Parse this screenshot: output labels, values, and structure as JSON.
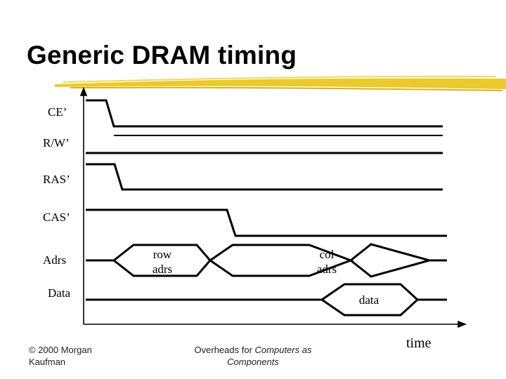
{
  "title": "Generic DRAM timing",
  "signals": {
    "ce": "CE’",
    "rw": "R/W’",
    "ras": "RAS’",
    "cas": "CAS’",
    "adrs": "Adrs",
    "data": "Data"
  },
  "bus_labels": {
    "row_line1": "row",
    "row_line2": "adrs",
    "col_line1": "col",
    "col_line2": "adrs",
    "data": "data"
  },
  "axis_label": "time",
  "footer": {
    "copyright_line1": "© 2000 Morgan",
    "copyright_line2": "Kaufman",
    "overheads_prefix": "Overheads for ",
    "overheads_title_line1": "Computers as",
    "overheads_title_line2": "Components"
  },
  "colors": {
    "underline": "#e8c51c",
    "trace": "#000000"
  }
}
